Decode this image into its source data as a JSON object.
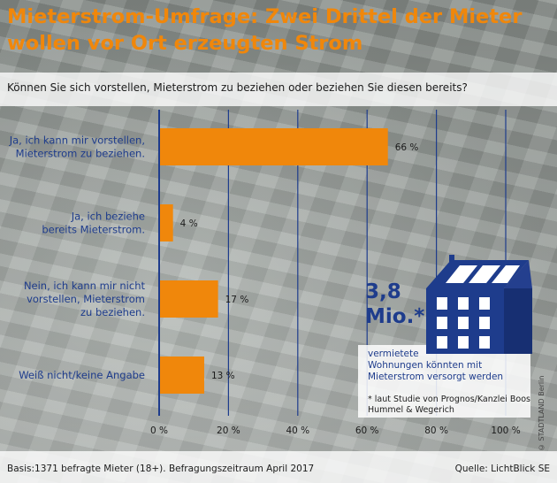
{
  "title_line1": "Mieterstrom-Umfrage: Zwei Drittel der Mieter",
  "title_line2": "wollen vor Ort erzeugten Strom",
  "question": "Können Sie sich vorstellen, Mieterstrom zu beziehen oder beziehen Sie diesen bereits?",
  "chart_data": {
    "type": "bar",
    "orientation": "horizontal",
    "categories": [
      [
        "Ja, ich kann mir vorstellen,",
        "Mieterstrom zu beziehen."
      ],
      [
        "Ja, ich beziehe",
        "bereits Mieterstrom."
      ],
      [
        "Nein, ich kann mir nicht",
        "vorstellen, Mieterstrom",
        "zu beziehen."
      ],
      [
        "Weiß nicht/keine Angabe"
      ]
    ],
    "values": [
      66,
      4,
      17,
      13
    ],
    "value_labels": [
      "66 %",
      "4 %",
      "17 %",
      "13 %"
    ],
    "xlim": [
      0,
      100
    ],
    "xticks": [
      0,
      20,
      40,
      60,
      80,
      100
    ],
    "xtick_labels": [
      "0 %",
      "20 %",
      "40 %",
      "60 %",
      "80 %",
      "100 %"
    ],
    "grid": true,
    "bar_color": "#f0870b",
    "axis_color": "#1e3c8c"
  },
  "callout": {
    "big_line1": "3,8",
    "big_line2": "Mio.*",
    "text_line1": "vermietete",
    "text_line2": "Wohnungen könnten  mit",
    "text_line3": "Mieterstrom versorgt werden",
    "note_line1": "* laut Studie von Prognos/Kanzlei Boos",
    "note_line2": "Hummel & Wegerich",
    "building_icon": "building-with-solar-panels-icon"
  },
  "basis": "Basis:1371 befragte Mieter (18+). Befragungszeitraum April 2017",
  "source": "Quelle: LichtBlick SE",
  "copyright": "© STADTLAND Berlin",
  "colors": {
    "accent": "#f0870b",
    "navy": "#1e3c8c"
  }
}
